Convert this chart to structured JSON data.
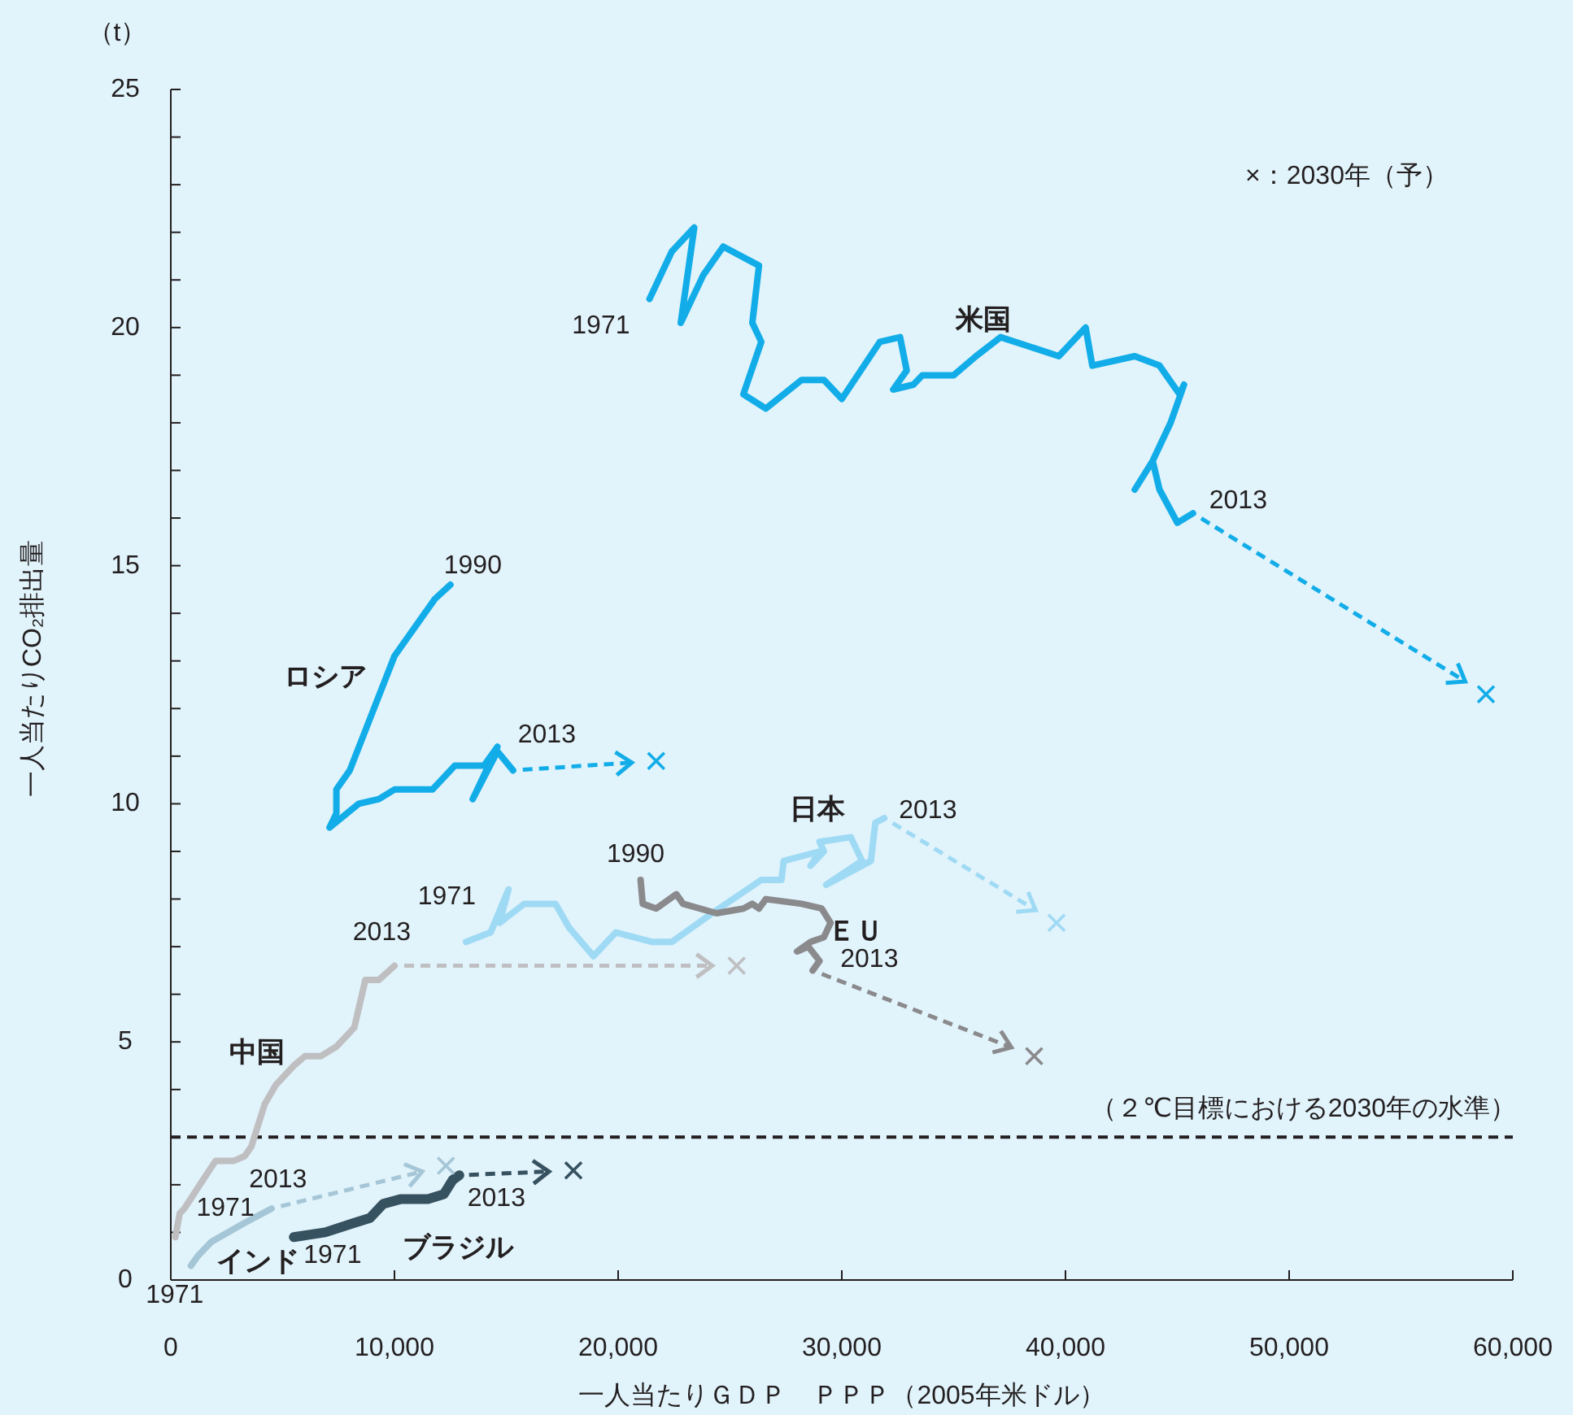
{
  "chart_data": {
    "type": "line",
    "xlabel": "一人当たりＧＤＰ　ＰＰＰ（2005年米ドル）",
    "ylabel": "一人当たりCO₂排出量",
    "xlim": [
      0,
      60000
    ],
    "ylim": [
      0,
      25
    ],
    "xticks": [
      0,
      {
        "value": 10000,
        "label": "10,000"
      },
      {
        "value": 20000,
        "label": "20,000"
      },
      {
        "value": 30000,
        "label": "30,000"
      },
      {
        "value": 40000,
        "label": "40,000"
      },
      {
        "value": 50000,
        "label": "50,000"
      },
      {
        "value": 60000,
        "label": "60,000"
      }
    ],
    "yticks": [
      0,
      {
        "value": 1,
        "label": null
      },
      {
        "value": 2,
        "label": null
      },
      {
        "value": 3,
        "label": null
      },
      {
        "value": 4,
        "label": null
      },
      5,
      {
        "value": 6,
        "label": null
      },
      {
        "value": 7,
        "label": null
      },
      {
        "value": 8,
        "label": null
      },
      {
        "value": 9,
        "label": null
      },
      10,
      {
        "value": 11,
        "label": null
      },
      {
        "value": 12,
        "label": null
      },
      {
        "value": 13,
        "label": null
      },
      {
        "value": 14,
        "label": null
      },
      15,
      {
        "value": 16,
        "label": null
      },
      {
        "value": 17,
        "label": null
      },
      {
        "value": 18,
        "label": null
      },
      {
        "value": 19,
        "label": null
      },
      20,
      {
        "value": 21,
        "label": null
      },
      {
        "value": 22,
        "label": null
      },
      {
        "value": 23,
        "label": null
      },
      {
        "value": 24,
        "label": null
      },
      25
    ],
    "line_style": "solid",
    "marker": "none",
    "grid": false,
    "series": [
      {
        "name": "米国",
        "color": "#12ade8",
        "x": [
          21400,
          22400,
          23400,
          22800,
          23800,
          24700,
          26300,
          26000,
          26400,
          25600,
          26600,
          28200,
          29200,
          30000,
          31700,
          32600,
          32900,
          32300,
          33200,
          33600,
          35000,
          36000,
          37100,
          38400,
          39700,
          40900,
          41200,
          43100,
          44200,
          45100,
          45300,
          44700,
          43900,
          43100,
          43900,
          44200,
          45000,
          45700
        ],
        "values": [
          20.6,
          21.6,
          22.1,
          20.1,
          21.1,
          21.7,
          21.3,
          20.1,
          19.7,
          18.6,
          18.3,
          18.9,
          18.9,
          18.5,
          19.7,
          19.8,
          19.1,
          18.7,
          18.8,
          19.0,
          19.0,
          19.4,
          19.8,
          19.6,
          19.4,
          20.0,
          19.2,
          19.4,
          19.2,
          18.6,
          18.8,
          18.0,
          17.2,
          16.6,
          17.2,
          16.6,
          15.9,
          16.1
        ]
      },
      {
        "name": "ロシア",
        "color": "#12ade8",
        "x": [
          12500,
          11800,
          10000,
          8000,
          7400,
          7400,
          7100,
          8400,
          9300,
          10000,
          11700,
          12700,
          14000,
          14600,
          13500,
          14600,
          15300
        ],
        "values": [
          14.6,
          14.3,
          13.1,
          10.7,
          10.3,
          9.8,
          9.5,
          10.0,
          10.1,
          10.3,
          10.3,
          10.8,
          10.8,
          11.2,
          10.1,
          11.1,
          10.7
        ]
      },
      {
        "name": "日本",
        "color": "#9fdaf5",
        "x": [
          13200,
          14300,
          15100,
          14700,
          15800,
          17200,
          17800,
          18900,
          19900,
          21500,
          22400,
          24200,
          26400,
          27300,
          27400,
          29000,
          28600,
          29200,
          29000,
          30400,
          30900,
          29300,
          31300,
          31500,
          31900
        ],
        "values": [
          7.1,
          7.3,
          8.2,
          7.5,
          7.9,
          7.9,
          7.4,
          6.8,
          7.3,
          7.1,
          7.1,
          7.7,
          8.4,
          8.4,
          8.8,
          9.0,
          8.7,
          9.0,
          9.2,
          9.3,
          8.8,
          8.3,
          8.8,
          9.6,
          9.7
        ]
      },
      {
        "name": "ＥＵ",
        "color": "#8a8a8d",
        "x": [
          21000,
          21100,
          21700,
          22600,
          22900,
          24400,
          25600,
          26000,
          26300,
          26600,
          28200,
          29100,
          29500,
          29200,
          28600,
          28000,
          28500,
          29000,
          28700
        ],
        "values": [
          8.4,
          7.9,
          7.8,
          8.1,
          7.9,
          7.7,
          7.8,
          7.9,
          7.8,
          8.0,
          7.9,
          7.8,
          7.5,
          7.2,
          7.1,
          6.9,
          7.0,
          6.7,
          6.5
        ]
      },
      {
        "name": "中国",
        "color": "#bfbfc1",
        "x": [
          200,
          400,
          600,
          1300,
          2000,
          2800,
          3300,
          3600,
          4200,
          4700,
          5500,
          6000,
          6700,
          7400,
          8200,
          8700,
          9300,
          10000
        ],
        "values": [
          0.9,
          1.4,
          1.5,
          2.0,
          2.5,
          2.5,
          2.6,
          2.8,
          3.7,
          4.1,
          4.5,
          4.7,
          4.7,
          4.9,
          5.3,
          6.3,
          6.3,
          6.6
        ]
      },
      {
        "name": "インド",
        "color": "#a5c6d6",
        "x": [
          900,
          1200,
          1800,
          3300,
          4500
        ],
        "values": [
          0.3,
          0.5,
          0.8,
          1.2,
          1.5
        ]
      },
      {
        "name": "ブラジル",
        "color": "#36515f",
        "x": [
          5500,
          6900,
          8200,
          8900,
          9500,
          10300,
          11500,
          12200,
          12600,
          12900
        ],
        "values": [
          0.9,
          1.0,
          1.2,
          1.3,
          1.6,
          1.7,
          1.7,
          1.8,
          2.1,
          2.2
        ]
      },
      {
        "type": "scatter",
        "marker": "cross",
        "x": [
          58800,
          21700,
          39600,
          38600,
          25300,
          12300,
          18000
        ],
        "values": [
          12.3,
          10.9,
          7.5,
          4.7,
          6.6,
          2.4,
          2.3
        ],
        "colors": [
          "#12ade8",
          "#12ade8",
          "#9fdaf5",
          "#8a8a8d",
          "#bfbfc1",
          "#a5c6d6",
          "#36515f"
        ]
      }
    ],
    "ref_lines": [
      {
        "axis": "y",
        "value": 3,
        "label": "（２℃目標における2030年の水準）",
        "color": "#231f20",
        "line_style": "dashed"
      }
    ],
    "annotations": [
      "（t）",
      "×：2030年（予）",
      {
        "text": "1971",
        "x": 21400,
        "y": 20.6
      },
      {
        "text": "2013",
        "x": 45700,
        "y": 16.1
      },
      {
        "text": "1990",
        "x": 12500,
        "y": 14.6
      },
      {
        "text": "2013",
        "x": 15300,
        "y": 10.7
      },
      {
        "text": "1971",
        "x": 13200,
        "y": 7.1
      },
      {
        "text": "2013",
        "x": 31900,
        "y": 9.7
      },
      {
        "text": "1990",
        "x": 21000,
        "y": 8.4
      },
      {
        "text": "2013",
        "x": 28700,
        "y": 6.5
      },
      {
        "text": "1971",
        "x": 200,
        "y": 0.9
      },
      {
        "text": "2013",
        "x": 10000,
        "y": 6.6
      },
      {
        "text": "1971",
        "x": 900,
        "y": 0.3
      },
      {
        "text": "2013",
        "x": 4500,
        "y": 1.5
      },
      {
        "text": "1971",
        "x": 5500,
        "y": 0.9
      },
      {
        "text": "2013",
        "x": 12900,
        "y": 2.2
      }
    ]
  }
}
